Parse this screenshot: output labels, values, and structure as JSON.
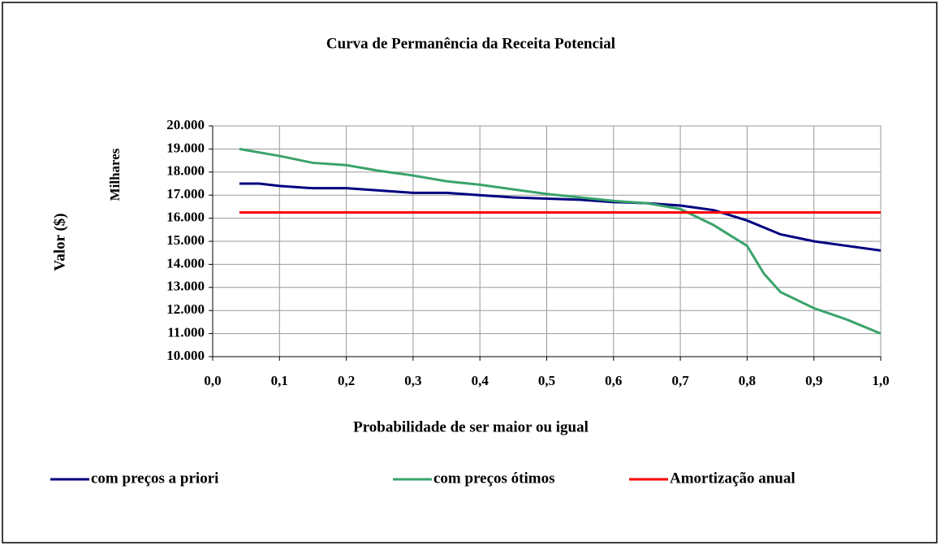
{
  "chart_data": {
    "type": "line",
    "title": "Curva de Permanência da Receita Potencial",
    "xlabel": "Probabilidade de ser maior ou igual",
    "ylabel": "Valor ($)",
    "yunit": "Milhares",
    "xlim": [
      0,
      1
    ],
    "xticks": [
      {
        "value": 0,
        "label": "0,0"
      },
      {
        "value": 0.1,
        "label": "0,1"
      },
      {
        "value": 0.2,
        "label": "0,2"
      },
      {
        "value": 0.3,
        "label": "0,3"
      },
      {
        "value": 0.4,
        "label": "0,4"
      },
      {
        "value": 0.5,
        "label": "0,5"
      },
      {
        "value": 0.6,
        "label": "0,6"
      },
      {
        "value": 0.7,
        "label": "0,7"
      },
      {
        "value": 0.8,
        "label": "0,8"
      },
      {
        "value": 0.9,
        "label": "0,9"
      },
      {
        "value": 1,
        "label": "1,0"
      }
    ],
    "ylim": [
      10000,
      20000
    ],
    "yticks": [
      {
        "value": 10000,
        "label": "10.000"
      },
      {
        "value": 11000,
        "label": "11.000"
      },
      {
        "value": 12000,
        "label": "12.000"
      },
      {
        "value": 13000,
        "label": "13.000"
      },
      {
        "value": 14000,
        "label": "14.000"
      },
      {
        "value": 15000,
        "label": "15.000"
      },
      {
        "value": 16000,
        "label": "16.000"
      },
      {
        "value": 17000,
        "label": "17.000"
      },
      {
        "value": 18000,
        "label": "18.000"
      },
      {
        "value": 19000,
        "label": "19.000"
      },
      {
        "value": 20000,
        "label": "20.000"
      }
    ],
    "grid": true,
    "legend": "bottom",
    "series": [
      {
        "name": "com preços a priori",
        "color": "#000080",
        "x": [
          0.04,
          0.07,
          0.1,
          0.15,
          0.2,
          0.25,
          0.3,
          0.35,
          0.4,
          0.45,
          0.5,
          0.55,
          0.6,
          0.65,
          0.7,
          0.75,
          0.8,
          0.85,
          0.9,
          0.95,
          1.0
        ],
        "values": [
          17500,
          17500,
          17400,
          17300,
          17300,
          17200,
          17100,
          17100,
          17000,
          16900,
          16850,
          16800,
          16700,
          16650,
          16550,
          16350,
          15900,
          15300,
          15000,
          14800,
          14600
        ]
      },
      {
        "name": "com preços ótimos",
        "color": "#3aa36b",
        "x": [
          0.04,
          0.1,
          0.15,
          0.2,
          0.25,
          0.3,
          0.35,
          0.4,
          0.45,
          0.5,
          0.55,
          0.6,
          0.65,
          0.7,
          0.75,
          0.8,
          0.825,
          0.85,
          0.9,
          0.95,
          1.0
        ],
        "values": [
          19000,
          18700,
          18400,
          18300,
          18050,
          17850,
          17600,
          17450,
          17250,
          17050,
          16900,
          16750,
          16650,
          16400,
          15700,
          14800,
          13600,
          12800,
          12100,
          11600,
          11000
        ]
      },
      {
        "name": "Amortização anual",
        "color": "#ff0000",
        "x": [
          0.04,
          1.0
        ],
        "values": [
          16250,
          16250
        ]
      }
    ]
  }
}
